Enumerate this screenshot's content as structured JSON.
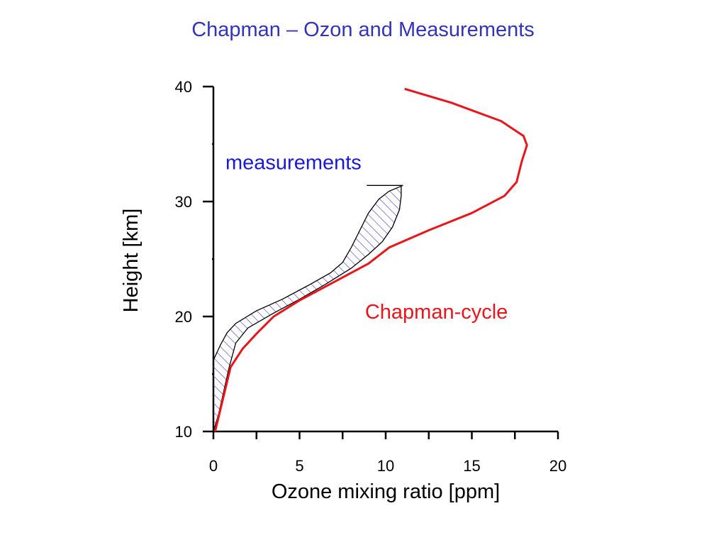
{
  "title": "Chapman – Ozon and Measurements",
  "colors": {
    "title": "#3333bb",
    "chapman": "#e8161b",
    "measurements_label": "#1a1ad6",
    "hatch": "#5555cc",
    "axis": "#000000"
  },
  "chart_data": {
    "type": "line",
    "title": "Chapman – Ozon and Measurements",
    "xlabel": "Ozone mixing ratio [ppm]",
    "ylabel": "Height [km]",
    "xlim": [
      0,
      20
    ],
    "ylim": [
      10,
      40
    ],
    "xticks": [
      0,
      5,
      10,
      15,
      20
    ],
    "yticks": [
      10,
      20,
      30,
      40
    ],
    "grid": false,
    "series": [
      {
        "name": "Chapman-cycle",
        "color": "#e8161b",
        "points": [
          [
            0.1,
            10.0
          ],
          [
            0.5,
            12.5
          ],
          [
            1.0,
            15.6
          ],
          [
            1.7,
            17.2
          ],
          [
            2.5,
            18.5
          ],
          [
            3.5,
            20.0
          ],
          [
            5.0,
            21.4
          ],
          [
            7.0,
            23.0
          ],
          [
            9.0,
            24.6
          ],
          [
            10.2,
            26.0
          ],
          [
            12.5,
            27.5
          ],
          [
            15.0,
            29.0
          ],
          [
            16.9,
            30.5
          ],
          [
            17.6,
            31.7
          ],
          [
            17.9,
            33.5
          ],
          [
            18.2,
            34.9
          ],
          [
            18.0,
            35.7
          ],
          [
            16.7,
            37.0
          ],
          [
            13.8,
            38.6
          ],
          [
            11.1,
            39.8
          ]
        ]
      },
      {
        "name": "measurements",
        "type": "band",
        "color": "#5555cc",
        "upper": [
          [
            0.0,
            16.2
          ],
          [
            0.4,
            17.5
          ],
          [
            0.8,
            18.6
          ],
          [
            1.3,
            19.4
          ],
          [
            2.5,
            20.5
          ],
          [
            4.0,
            21.5
          ],
          [
            5.5,
            22.7
          ],
          [
            6.8,
            23.8
          ],
          [
            7.5,
            24.7
          ],
          [
            8.0,
            26.0
          ],
          [
            8.5,
            27.5
          ],
          [
            9.0,
            29.0
          ],
          [
            9.6,
            30.2
          ],
          [
            10.2,
            30.9
          ],
          [
            11.0,
            31.4
          ]
        ],
        "lower": [
          [
            0.0,
            10.0
          ],
          [
            0.3,
            11.5
          ],
          [
            0.6,
            13.5
          ],
          [
            0.9,
            15.5
          ],
          [
            1.3,
            17.7
          ],
          [
            2.0,
            19.0
          ],
          [
            3.5,
            20.3
          ],
          [
            5.0,
            21.5
          ],
          [
            6.5,
            22.8
          ],
          [
            8.0,
            24.2
          ],
          [
            9.0,
            25.4
          ],
          [
            9.8,
            26.5
          ],
          [
            10.4,
            27.8
          ],
          [
            10.8,
            29.3
          ],
          [
            10.9,
            30.5
          ],
          [
            10.9,
            31.4
          ]
        ],
        "top": [
          [
            8.9,
            31.4
          ],
          [
            11.0,
            31.4
          ]
        ]
      }
    ],
    "annotations": [
      {
        "text": "measurements",
        "x": 0.7,
        "y": 32.8,
        "color": "#1a1ad6"
      },
      {
        "text": "Chapman-cycle",
        "x": 8.8,
        "y": 19.8,
        "color": "#e8161b"
      }
    ]
  }
}
